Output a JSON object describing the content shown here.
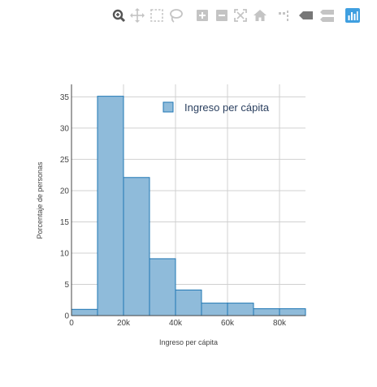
{
  "toolbar": {
    "buttons": [
      {
        "name": "zoom-icon",
        "color": "#555555"
      },
      {
        "name": "pan-icon",
        "color": "#c4c4c4"
      },
      {
        "name": "box-select-icon",
        "color": "#c4c4c4"
      },
      {
        "name": "lasso-select-icon",
        "color": "#c4c4c4"
      },
      {
        "name": "zoom-in-icon",
        "color": "#c4c4c4"
      },
      {
        "name": "zoom-out-icon",
        "color": "#c4c4c4"
      },
      {
        "name": "autoscale-icon",
        "color": "#c4c4c4"
      },
      {
        "name": "reset-axes-icon",
        "color": "#c4c4c4"
      },
      {
        "name": "spike-lines-icon",
        "color": "#c4c4c4"
      },
      {
        "name": "hover-closest-icon",
        "color": "#777777"
      },
      {
        "name": "hover-compare-icon",
        "color": "#c4c4c4"
      },
      {
        "name": "plotly-logo-icon",
        "color": "#3f9fe0"
      }
    ]
  },
  "chart_data": {
    "type": "bar",
    "title": "",
    "xlabel": "Ingreso per cápita",
    "ylabel": "Porcentaje de personas",
    "bin_width": 10000,
    "bin_starts": [
      0,
      10000,
      20000,
      30000,
      40000,
      50000,
      60000,
      70000,
      80000
    ],
    "values": [
      1,
      35.1,
      22.1,
      9.1,
      4.1,
      2.0,
      2.0,
      1.1,
      1.1
    ],
    "xlim": [
      0,
      90000
    ],
    "ylim": [
      0,
      37
    ],
    "x_ticks": [
      0,
      20000,
      40000,
      60000,
      80000
    ],
    "x_tick_labels": [
      "0",
      "20k",
      "40k",
      "60k",
      "80k"
    ],
    "y_ticks": [
      0,
      5,
      10,
      15,
      20,
      25,
      30,
      35
    ],
    "y_tick_labels": [
      "0",
      "5",
      "10",
      "15",
      "20",
      "25",
      "30",
      "35"
    ],
    "grid": true,
    "legend": {
      "position": "top-right",
      "entries": [
        "Ingreso per cápita"
      ]
    },
    "series": [
      {
        "name": "Ingreso per cápita",
        "fill": "#8fbbda",
        "stroke": "#1f77b4"
      }
    ]
  }
}
